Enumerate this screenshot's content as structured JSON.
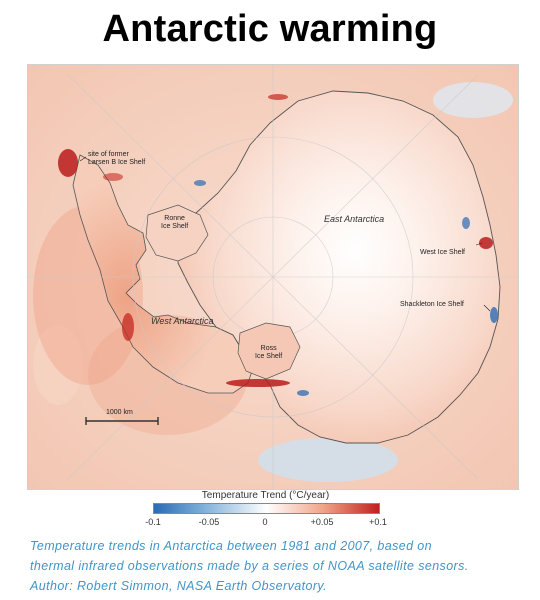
{
  "title": "Antarctic warming",
  "map": {
    "labels": {
      "larsen_line1": "site of former",
      "larsen_line2": "Larsen B Ice Shelf",
      "ronne_line1": "Ronne",
      "ronne_line2": "Ice Shelf",
      "east_antarctica": "East Antarctica",
      "west_antarctica": "West Antarctica",
      "ross_line1": "Ross",
      "ross_line2": "Ice Shelf",
      "west_ice_shelf": "West Ice Shelf",
      "shackleton_ice_shelf": "Shackleton Ice Shelf",
      "scale_bar": "1000 km"
    },
    "colors": {
      "warm_strong": "#c0201f",
      "warm": "#ee9d80",
      "neutral": "#ffffff",
      "cool": "#7fb0d9",
      "cool_strong": "#2a6bb5"
    }
  },
  "legend": {
    "title": "Temperature Trend (°C/year)",
    "ticks": [
      "-0.1",
      "-0.05",
      "0",
      "+0.05",
      "+0.1"
    ],
    "tick_values": [
      -0.1,
      -0.05,
      0,
      0.05,
      0.1
    ]
  },
  "caption": {
    "line1": "Temperature trends in Antarctica between 1981 and 2007, based on",
    "line2": "thermal infrared observations made by a series of NOAA satellite sensors.",
    "line3": "Author: Robert Simmon, NASA Earth Observatory."
  }
}
